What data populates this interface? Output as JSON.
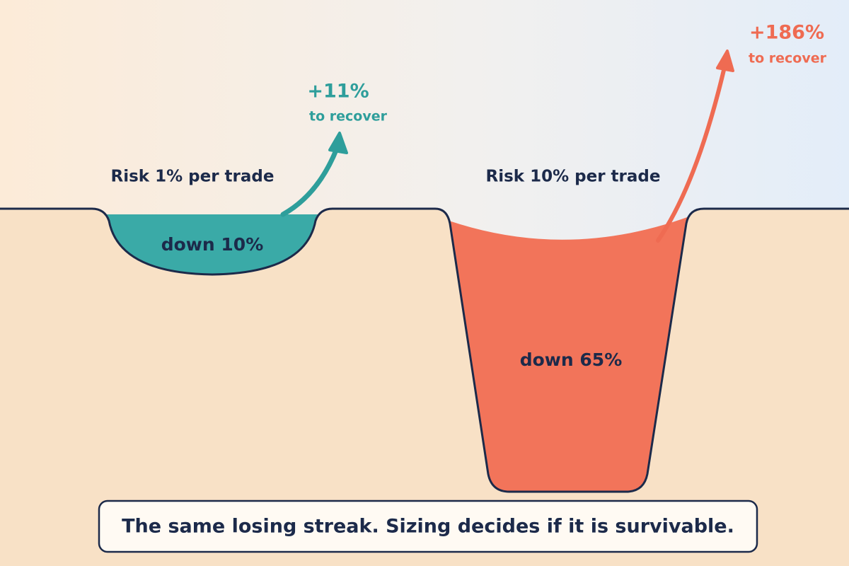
{
  "left": {
    "label": "Risk 1% per trade",
    "drawdown": "down 10%",
    "recovery": "+11%",
    "recovery_note": "to recover"
  },
  "right": {
    "label": "Risk 10% per trade",
    "drawdown": "down 65%",
    "recovery": "+186%",
    "recovery_note": "to recover"
  },
  "caption": "The same losing streak. Sizing decides if it is survivable."
}
